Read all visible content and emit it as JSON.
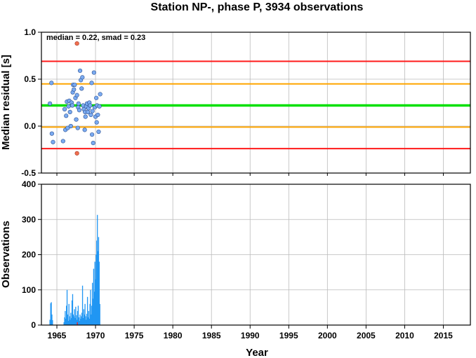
{
  "chart_data": {
    "title": "Station NP-, phase P, 3934 observations",
    "xlabel": "Year",
    "xlim": [
      1963.0,
      2018.5
    ],
    "xticks": [
      1965,
      1970,
      1975,
      1980,
      1985,
      1990,
      1995,
      2000,
      2005,
      2010,
      2015
    ],
    "colors": {
      "median_line": "#00e000",
      "smad_lines": "#ffa500",
      "limit_lines": "#ff1a1a",
      "points": "#7aaaf0",
      "outliers": "#f07050",
      "bars": "#2196f3",
      "grid": "#bbbbbb"
    },
    "top_panel": {
      "type": "scatter",
      "ylabel": "Median residual [s]",
      "ylim": [
        -0.5,
        1.0
      ],
      "yticks": [
        -0.5,
        0.0,
        0.5,
        1.0
      ],
      "ytick_labels": [
        "-0.5",
        "0.0",
        "0.5",
        "1.0"
      ],
      "annotation": "median = 0.22, smad = 0.23",
      "median": 0.22,
      "smad_lines": [
        0.45,
        -0.01
      ],
      "limit_lines": [
        0.69,
        -0.24
      ],
      "points": [
        [
          1964.1,
          0.24
        ],
        [
          1964.3,
          0.46
        ],
        [
          1964.35,
          -0.08
        ],
        [
          1964.5,
          -0.17
        ],
        [
          1965.8,
          -0.16
        ],
        [
          1966.0,
          0.18
        ],
        [
          1966.1,
          -0.04
        ],
        [
          1966.2,
          0.11
        ],
        [
          1966.3,
          0.26
        ],
        [
          1966.4,
          -0.02
        ],
        [
          1966.5,
          0.21
        ],
        [
          1966.6,
          0.27
        ],
        [
          1966.7,
          0.15
        ],
        [
          1966.8,
          0.0
        ],
        [
          1966.9,
          0.25
        ],
        [
          1967.0,
          0.22
        ],
        [
          1967.05,
          0.36
        ],
        [
          1967.1,
          0.44
        ],
        [
          1967.2,
          0.39
        ],
        [
          1967.3,
          0.44
        ],
        [
          1967.4,
          0.3
        ],
        [
          1967.5,
          0.07
        ],
        [
          1967.6,
          0.33
        ],
        [
          1967.7,
          -0.02
        ],
        [
          1967.75,
          0.2
        ],
        [
          1967.8,
          0.24
        ],
        [
          1967.9,
          0.17
        ],
        [
          1968.0,
          0.59
        ],
        [
          1968.1,
          0.49
        ],
        [
          1968.2,
          0.4
        ],
        [
          1968.3,
          0.52
        ],
        [
          1968.4,
          0.22
        ],
        [
          1968.5,
          0.18
        ],
        [
          1968.6,
          -0.04
        ],
        [
          1968.65,
          0.15
        ],
        [
          1968.7,
          0.1
        ],
        [
          1968.8,
          0.21
        ],
        [
          1968.9,
          0.24
        ],
        [
          1969.0,
          0.15
        ],
        [
          1969.1,
          0.19
        ],
        [
          1969.2,
          0.25
        ],
        [
          1969.3,
          0.22
        ],
        [
          1969.4,
          0.12
        ],
        [
          1969.5,
          0.46
        ],
        [
          1969.55,
          -0.09
        ],
        [
          1969.6,
          0.16
        ],
        [
          1969.7,
          -0.18
        ],
        [
          1969.8,
          0.57
        ],
        [
          1969.9,
          0.2
        ],
        [
          1970.0,
          0.1
        ],
        [
          1970.1,
          0.3
        ],
        [
          1970.15,
          0.04
        ],
        [
          1970.2,
          0.22
        ],
        [
          1970.3,
          0.12
        ],
        [
          1970.4,
          -0.06
        ],
        [
          1970.5,
          0.21
        ],
        [
          1970.6,
          0.34
        ]
      ],
      "outliers": [
        [
          1967.6,
          0.88
        ],
        [
          1967.6,
          -0.29
        ]
      ]
    },
    "bottom_panel": {
      "type": "bar",
      "ylabel": "Observations",
      "ylim": [
        0,
        400
      ],
      "yticks": [
        0,
        100,
        200,
        300,
        400
      ],
      "bars": [
        [
          1964.1,
          15
        ],
        [
          1964.2,
          62
        ],
        [
          1964.28,
          65
        ],
        [
          1964.36,
          30
        ],
        [
          1964.44,
          14
        ],
        [
          1965.92,
          8
        ],
        [
          1966.0,
          22
        ],
        [
          1966.08,
          40
        ],
        [
          1966.16,
          18
        ],
        [
          1966.24,
          55
        ],
        [
          1966.32,
          100
        ],
        [
          1966.4,
          30
        ],
        [
          1966.48,
          12
        ],
        [
          1966.56,
          60
        ],
        [
          1966.64,
          25
        ],
        [
          1966.72,
          15
        ],
        [
          1966.8,
          35
        ],
        [
          1966.88,
          20
        ],
        [
          1966.96,
          70
        ],
        [
          1967.04,
          88
        ],
        [
          1967.12,
          30
        ],
        [
          1967.2,
          25
        ],
        [
          1967.28,
          45
        ],
        [
          1967.36,
          20
        ],
        [
          1967.44,
          52
        ],
        [
          1967.52,
          28
        ],
        [
          1967.6,
          15
        ],
        [
          1967.68,
          40
        ],
        [
          1967.76,
          55
        ],
        [
          1967.84,
          22
        ],
        [
          1967.92,
          12
        ],
        [
          1968.0,
          30
        ],
        [
          1968.08,
          18
        ],
        [
          1968.16,
          25
        ],
        [
          1968.24,
          35
        ],
        [
          1968.32,
          112
        ],
        [
          1968.4,
          20
        ],
        [
          1968.48,
          45
        ],
        [
          1968.56,
          30
        ],
        [
          1968.64,
          60
        ],
        [
          1968.72,
          25
        ],
        [
          1968.8,
          15
        ],
        [
          1968.88,
          32
        ],
        [
          1968.96,
          80
        ],
        [
          1969.04,
          22
        ],
        [
          1969.12,
          40
        ],
        [
          1969.2,
          18
        ],
        [
          1969.28,
          60
        ],
        [
          1969.36,
          100
        ],
        [
          1969.44,
          30
        ],
        [
          1969.52,
          55
        ],
        [
          1969.6,
          120
        ],
        [
          1969.68,
          75
        ],
        [
          1969.76,
          160
        ],
        [
          1969.84,
          95
        ],
        [
          1969.92,
          180
        ],
        [
          1970.0,
          130
        ],
        [
          1970.08,
          200
        ],
        [
          1970.16,
          240
        ],
        [
          1970.24,
          313
        ],
        [
          1970.32,
          210
        ],
        [
          1970.4,
          250
        ],
        [
          1970.48,
          180
        ],
        [
          1970.56,
          60
        ]
      ],
      "bars_red": [
        [
          1967.65,
          8
        ]
      ]
    }
  }
}
